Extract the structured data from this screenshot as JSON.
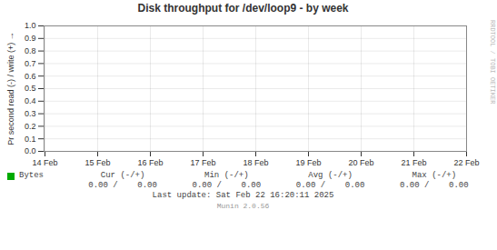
{
  "chart_data": {
    "type": "line",
    "title": "Disk throughput for /dev/loop9 - by week",
    "y_label": "Pr second read (-) / write (+)",
    "categories": [
      "14 Feb",
      "15 Feb",
      "16 Feb",
      "17 Feb",
      "18 Feb",
      "19 Feb",
      "20 Feb",
      "21 Feb",
      "22 Feb"
    ],
    "series": [
      {
        "name": "Bytes",
        "color": "#00aa00",
        "values": [
          null,
          null,
          null,
          null,
          null,
          null,
          null,
          null,
          null
        ]
      }
    ],
    "ylim": [
      0.0,
      1.0
    ],
    "yticks": [
      {
        "value": 0.0,
        "label": "0.0"
      },
      0.1,
      0.2,
      0.3,
      0.4,
      0.5,
      0.6,
      0.7,
      0.8,
      0.9,
      {
        "value": 1.0,
        "label": "1.0"
      }
    ],
    "grid": true,
    "legend": "bottom",
    "annotations": [
      "Cur (-/+)",
      "Min (-/+)",
      "Avg (-/+)",
      "Max (-/+)",
      "0.00 /    0.00",
      "0.00 /    0.00",
      "0.00 /    0.00",
      "0.00 /    0.00",
      "Last update: Sat Feb 22 16:20:11 2025",
      "Munin 2.0.56",
      "RRDTOOL / TOBI OETIKER"
    ]
  }
}
